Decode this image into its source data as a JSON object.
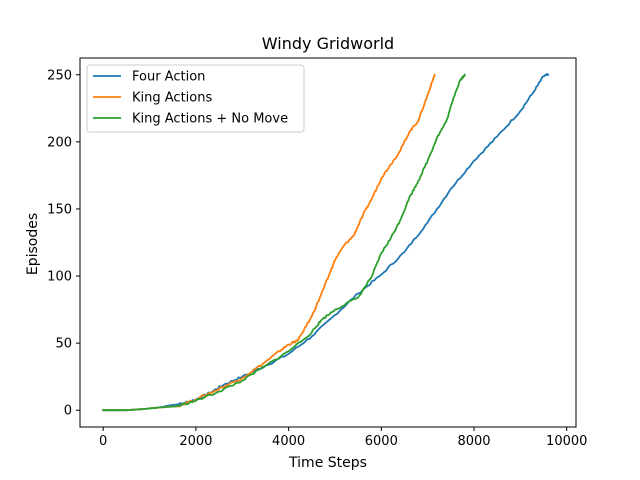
{
  "chart_data": {
    "type": "line",
    "title": "Windy Gridworld",
    "xlabel": "Time Steps",
    "ylabel": "Episodes",
    "xlim": [
      -500,
      10200
    ],
    "ylim": [
      -12.5,
      262.5
    ],
    "xticks": [
      0,
      2000,
      4000,
      6000,
      8000,
      10000
    ],
    "yticks": [
      0,
      50,
      100,
      150,
      200,
      250
    ],
    "grid": false,
    "legend_position": "upper left",
    "series": [
      {
        "name": "Four Action",
        "color": "#1f77b4",
        "points": [
          [
            0,
            0
          ],
          [
            500,
            0
          ],
          [
            900,
            1
          ],
          [
            1200,
            2
          ],
          [
            1500,
            4
          ],
          [
            1700,
            5
          ],
          [
            2000,
            8
          ],
          [
            2300,
            13
          ],
          [
            2600,
            19
          ],
          [
            3000,
            25
          ],
          [
            3500,
            33
          ],
          [
            4000,
            42
          ],
          [
            4500,
            55
          ],
          [
            5000,
            71
          ],
          [
            5500,
            87
          ],
          [
            6000,
            101
          ],
          [
            6500,
            118
          ],
          [
            7000,
            140
          ],
          [
            7500,
            165
          ],
          [
            8000,
            186
          ],
          [
            8500,
            204
          ],
          [
            9000,
            223
          ],
          [
            9300,
            238
          ],
          [
            9500,
            249
          ],
          [
            9600,
            250
          ]
        ]
      },
      {
        "name": "King Actions",
        "color": "#ff7f0e",
        "points": [
          [
            0,
            0
          ],
          [
            500,
            0
          ],
          [
            900,
            1
          ],
          [
            1200,
            2
          ],
          [
            1600,
            3
          ],
          [
            2000,
            8
          ],
          [
            2500,
            16
          ],
          [
            3000,
            24
          ],
          [
            3500,
            36
          ],
          [
            3800,
            44
          ],
          [
            4000,
            49
          ],
          [
            4200,
            52
          ],
          [
            4500,
            70
          ],
          [
            4700,
            86
          ],
          [
            4900,
            103
          ],
          [
            5000,
            112
          ],
          [
            5200,
            123
          ],
          [
            5400,
            130
          ],
          [
            5600,
            145
          ],
          [
            5800,
            158
          ],
          [
            6000,
            173
          ],
          [
            6200,
            183
          ],
          [
            6400,
            193
          ],
          [
            6600,
            207
          ],
          [
            6800,
            216
          ],
          [
            7000,
            235
          ],
          [
            7100,
            245
          ],
          [
            7150,
            250
          ]
        ]
      },
      {
        "name": "King Actions + No Move",
        "color": "#2ca02c",
        "points": [
          [
            0,
            0
          ],
          [
            500,
            0
          ],
          [
            900,
            1
          ],
          [
            1200,
            2
          ],
          [
            1600,
            3
          ],
          [
            2000,
            7
          ],
          [
            2500,
            14
          ],
          [
            3000,
            22
          ],
          [
            3500,
            33
          ],
          [
            4000,
            44
          ],
          [
            4500,
            58
          ],
          [
            4700,
            67
          ],
          [
            5000,
            75
          ],
          [
            5500,
            84
          ],
          [
            5800,
            100
          ],
          [
            6000,
            117
          ],
          [
            6200,
            128
          ],
          [
            6400,
            141
          ],
          [
            6600,
            158
          ],
          [
            6800,
            171
          ],
          [
            7000,
            186
          ],
          [
            7200,
            203
          ],
          [
            7400,
            215
          ],
          [
            7600,
            237
          ],
          [
            7700,
            246
          ],
          [
            7800,
            250
          ]
        ]
      }
    ]
  }
}
